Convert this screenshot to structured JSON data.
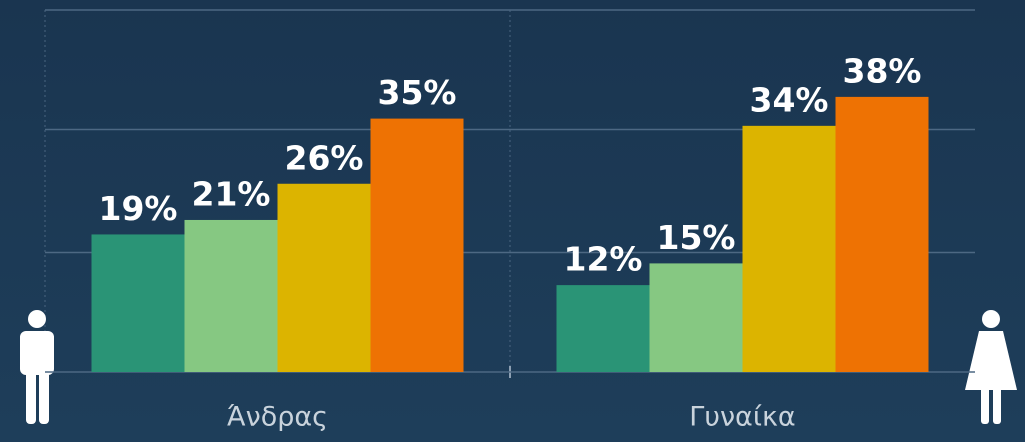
{
  "chart_data": {
    "type": "bar",
    "categories": [
      "Άνδρας",
      "Γυναίκα"
    ],
    "series": [
      {
        "color": "#2a9476",
        "values": [
          19,
          12
        ],
        "value_labels": [
          "19%",
          "12%"
        ]
      },
      {
        "color": "#86c882",
        "values": [
          21,
          15
        ],
        "value_labels": [
          "21%",
          "15%"
        ]
      },
      {
        "color": "#dcb400",
        "values": [
          26,
          34
        ],
        "value_labels": [
          "26%",
          "34%"
        ]
      },
      {
        "color": "#ee7203",
        "values": [
          35,
          38
        ],
        "value_labels": [
          "35%",
          "38%"
        ]
      }
    ],
    "ylim": [
      0,
      50
    ],
    "yticks": [
      0,
      16.5,
      33.5,
      50
    ],
    "grid": true
  }
}
